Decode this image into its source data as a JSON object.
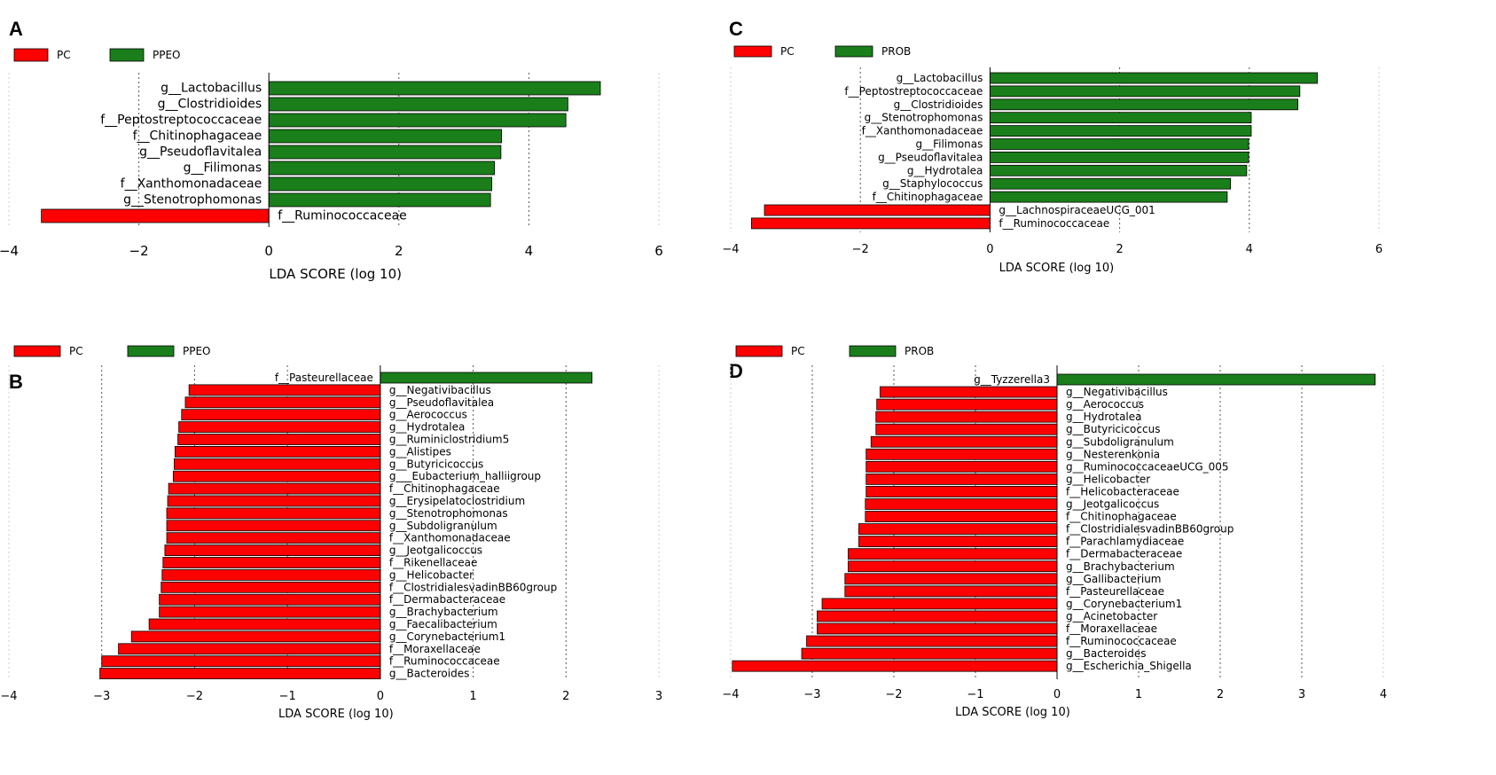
{
  "colors": {
    "PC": "#ff0000",
    "treatment": "#1a7f1a",
    "edge": "#000000",
    "grid": "#999999"
  },
  "chart_data": [
    {
      "panel": "A",
      "type": "bar",
      "orientation": "horizontal",
      "legend": [
        {
          "name": "PC",
          "group": "PC"
        },
        {
          "name": "PPEO",
          "group": "treatment"
        }
      ],
      "xlabel": "LDA SCORE (log 10)",
      "xlim": [
        -4,
        6
      ],
      "xticks": [
        -4,
        -2,
        0,
        2,
        4,
        6
      ],
      "xtick_labels": [
        "−4",
        "−2",
        "0",
        "2",
        "4",
        "6"
      ],
      "bars": [
        {
          "label": "g__Lactobacillus",
          "value": 5.1,
          "group": "treatment"
        },
        {
          "label": "g__Clostridioides",
          "value": 4.6,
          "group": "treatment"
        },
        {
          "label": "f__Peptostreptococcaceae",
          "value": 4.57,
          "group": "treatment"
        },
        {
          "label": "f__Chitinophagaceae",
          "value": 3.58,
          "group": "treatment"
        },
        {
          "label": "g__Pseudoflavitalea",
          "value": 3.57,
          "group": "treatment"
        },
        {
          "label": "g__Filimonas",
          "value": 3.47,
          "group": "treatment"
        },
        {
          "label": "f__Xanthomonadaceae",
          "value": 3.43,
          "group": "treatment"
        },
        {
          "label": "g__Stenotrophomonas",
          "value": 3.41,
          "group": "treatment"
        },
        {
          "label": "f__Ruminococcaceae",
          "value": -3.5,
          "group": "PC"
        }
      ]
    },
    {
      "panel": "B",
      "type": "bar",
      "orientation": "horizontal",
      "legend": [
        {
          "name": "PC",
          "group": "PC"
        },
        {
          "name": "PPEO",
          "group": "treatment"
        }
      ],
      "xlabel": "LDA SCORE (log 10)",
      "xlim": [
        -4,
        3
      ],
      "xticks": [
        -4,
        -3,
        -2,
        -1,
        0,
        1,
        2,
        3
      ],
      "xtick_labels": [
        "−4",
        "−3",
        "−2",
        "−1",
        "0",
        "1",
        "2",
        "3"
      ],
      "bars": [
        {
          "label": "f__Pasteurellaceae",
          "value": 2.28,
          "group": "treatment"
        },
        {
          "label": "g__Negativibacillus",
          "value": -2.06,
          "group": "PC"
        },
        {
          "label": "g__Pseudoflavitalea",
          "value": -2.1,
          "group": "PC"
        },
        {
          "label": "g__Aerococcus",
          "value": -2.14,
          "group": "PC"
        },
        {
          "label": "g__Hydrotalea",
          "value": -2.17,
          "group": "PC"
        },
        {
          "label": "g__Ruminiclostridium5",
          "value": -2.18,
          "group": "PC"
        },
        {
          "label": "g__Alistipes",
          "value": -2.21,
          "group": "PC"
        },
        {
          "label": "g__Butyricicoccus",
          "value": -2.22,
          "group": "PC"
        },
        {
          "label": "g___Eubacterium_halliigroup",
          "value": -2.23,
          "group": "PC"
        },
        {
          "label": "f__Chitinophagaceae",
          "value": -2.28,
          "group": "PC"
        },
        {
          "label": "g__Erysipelatoclostridium",
          "value": -2.29,
          "group": "PC"
        },
        {
          "label": "g__Stenotrophomonas",
          "value": -2.3,
          "group": "PC"
        },
        {
          "label": "g__Subdoligranulum",
          "value": -2.3,
          "group": "PC"
        },
        {
          "label": "f__Xanthomonadaceae",
          "value": -2.3,
          "group": "PC"
        },
        {
          "label": "g__Jeotgalicoccus",
          "value": -2.32,
          "group": "PC"
        },
        {
          "label": "f__Rikenellaceae",
          "value": -2.34,
          "group": "PC"
        },
        {
          "label": "g__Helicobacter",
          "value": -2.35,
          "group": "PC"
        },
        {
          "label": "f__ClostridialesvadinBB60group",
          "value": -2.36,
          "group": "PC"
        },
        {
          "label": "f__Dermabacteraceae",
          "value": -2.38,
          "group": "PC"
        },
        {
          "label": "g__Brachybacterium",
          "value": -2.38,
          "group": "PC"
        },
        {
          "label": "g__Faecalibacterium",
          "value": -2.49,
          "group": "PC"
        },
        {
          "label": "g__Corynebacterium1",
          "value": -2.68,
          "group": "PC"
        },
        {
          "label": "f__Moraxellaceae",
          "value": -2.82,
          "group": "PC"
        },
        {
          "label": "f__Ruminococcaceae",
          "value": -3.0,
          "group": "PC"
        },
        {
          "label": "g__Bacteroides",
          "value": -3.02,
          "group": "PC"
        }
      ]
    },
    {
      "panel": "C",
      "type": "bar",
      "orientation": "horizontal",
      "legend": [
        {
          "name": "PC",
          "group": "PC"
        },
        {
          "name": "PROB",
          "group": "treatment"
        }
      ],
      "xlabel": "LDA SCORE (log 10)",
      "xlim": [
        -4,
        6
      ],
      "xticks": [
        -4,
        -2,
        0,
        2,
        4,
        6
      ],
      "xtick_labels": [
        "−4",
        "−2",
        "0",
        "2",
        "4",
        "6"
      ],
      "bars": [
        {
          "label": "g__Lactobacillus",
          "value": 5.05,
          "group": "treatment"
        },
        {
          "label": "f__Peptostreptococcaceae",
          "value": 4.78,
          "group": "treatment"
        },
        {
          "label": "g__Clostridioides",
          "value": 4.75,
          "group": "treatment"
        },
        {
          "label": "g__Stenotrophomonas",
          "value": 4.03,
          "group": "treatment"
        },
        {
          "label": "f__Xanthomonadaceae",
          "value": 4.03,
          "group": "treatment"
        },
        {
          "label": "g__Filimonas",
          "value": 3.99,
          "group": "treatment"
        },
        {
          "label": "g__Pseudoflavitalea",
          "value": 3.99,
          "group": "treatment"
        },
        {
          "label": "g__Hydrotalea",
          "value": 3.96,
          "group": "treatment"
        },
        {
          "label": "g__Staphylococcus",
          "value": 3.71,
          "group": "treatment"
        },
        {
          "label": "f__Chitinophagaceae",
          "value": 3.66,
          "group": "treatment"
        },
        {
          "label": "g__LachnospiraceaeUCG_001",
          "value": -3.48,
          "group": "PC"
        },
        {
          "label": "f__Ruminococcaceae",
          "value": -3.68,
          "group": "PC"
        }
      ]
    },
    {
      "panel": "D",
      "type": "bar",
      "orientation": "horizontal",
      "legend": [
        {
          "name": "PC",
          "group": "PC"
        },
        {
          "name": "PROB",
          "group": "treatment"
        }
      ],
      "xlabel": "LDA SCORE (log 10)",
      "xlim": [
        -4,
        4
      ],
      "xticks": [
        -4,
        -3,
        -2,
        -1,
        0,
        1,
        2,
        3,
        4
      ],
      "xtick_labels": [
        "−4",
        "−3",
        "−2",
        "−1",
        "0",
        "1",
        "2",
        "3",
        "4"
      ],
      "bars": [
        {
          "label": "g__Tyzzerella3",
          "value": 3.9,
          "group": "treatment"
        },
        {
          "label": "g__Negativibacillus",
          "value": -2.17,
          "group": "PC"
        },
        {
          "label": "g__Aerococcus",
          "value": -2.21,
          "group": "PC"
        },
        {
          "label": "g__Hydrotalea",
          "value": -2.22,
          "group": "PC"
        },
        {
          "label": "g__Butyricicoccus",
          "value": -2.22,
          "group": "PC"
        },
        {
          "label": "g__Subdoligranulum",
          "value": -2.28,
          "group": "PC"
        },
        {
          "label": "g__Nesterenkonia",
          "value": -2.34,
          "group": "PC"
        },
        {
          "label": "g__RuminococcaceaeUCG_005",
          "value": -2.34,
          "group": "PC"
        },
        {
          "label": "g__Helicobacter",
          "value": -2.34,
          "group": "PC"
        },
        {
          "label": "f__Helicobacteraceae",
          "value": -2.34,
          "group": "PC"
        },
        {
          "label": "g__Jeotgalicoccus",
          "value": -2.35,
          "group": "PC"
        },
        {
          "label": "f__Chitinophagaceae",
          "value": -2.35,
          "group": "PC"
        },
        {
          "label": "f__ClostridialesvadinBB60group",
          "value": -2.43,
          "group": "PC"
        },
        {
          "label": "f__Parachlamydiaceae",
          "value": -2.43,
          "group": "PC"
        },
        {
          "label": "f__Dermabacteraceae",
          "value": -2.56,
          "group": "PC"
        },
        {
          "label": "g__Brachybacterium",
          "value": -2.56,
          "group": "PC"
        },
        {
          "label": "g__Gallibacterium",
          "value": -2.6,
          "group": "PC"
        },
        {
          "label": "f__Pasteurellaceae",
          "value": -2.6,
          "group": "PC"
        },
        {
          "label": "g__Corynebacterium1",
          "value": -2.88,
          "group": "PC"
        },
        {
          "label": "g__Acinetobacter",
          "value": -2.94,
          "group": "PC"
        },
        {
          "label": "f__Moraxellaceae",
          "value": -2.94,
          "group": "PC"
        },
        {
          "label": "f__Ruminococcaceae",
          "value": -3.07,
          "group": "PC"
        },
        {
          "label": "g__Bacteroides",
          "value": -3.13,
          "group": "PC"
        },
        {
          "label": "g__Escherichia_Shigella",
          "value": -3.98,
          "group": "PC"
        }
      ]
    }
  ]
}
